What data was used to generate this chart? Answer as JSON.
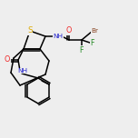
{
  "bg_color": "#eeeeee",
  "line_color": "#000000",
  "atom_colors": {
    "S": "#ddaa00",
    "O": "#ee2222",
    "N": "#2222cc",
    "Br": "#884422",
    "F": "#228822",
    "C": "#000000"
  },
  "lw": 1.1,
  "fs": 5.8
}
